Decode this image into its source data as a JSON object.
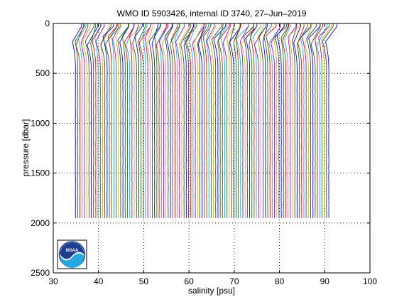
{
  "chart_data": {
    "type": "line",
    "title": "WMO ID 5903426, internal ID 3740, 27–Jun–2019",
    "xlabel": "salinity [psu]",
    "ylabel": "pressure [dbar]",
    "xlim": [
      30,
      100
    ],
    "ylim": [
      0,
      2500
    ],
    "y_reversed": true,
    "xticks": [
      "30",
      "40",
      "50",
      "60",
      "70",
      "80",
      "90",
      "100"
    ],
    "yticks": [
      "0",
      "500",
      "1000",
      "1500",
      "2000",
      "2500"
    ],
    "grid": "dotted",
    "profile_count": 113,
    "first_profile_deep_salinity": 34.9,
    "profile_offset_psu": 0.5,
    "max_pressure": 1950,
    "series_colors": [
      "#0000ff",
      "#008000",
      "#ff0000",
      "#00bfbf",
      "#bf00bf",
      "#bfbf00",
      "#404040"
    ]
  },
  "logo": {
    "label": "NOAA",
    "icon": "noaa-logo-icon"
  }
}
